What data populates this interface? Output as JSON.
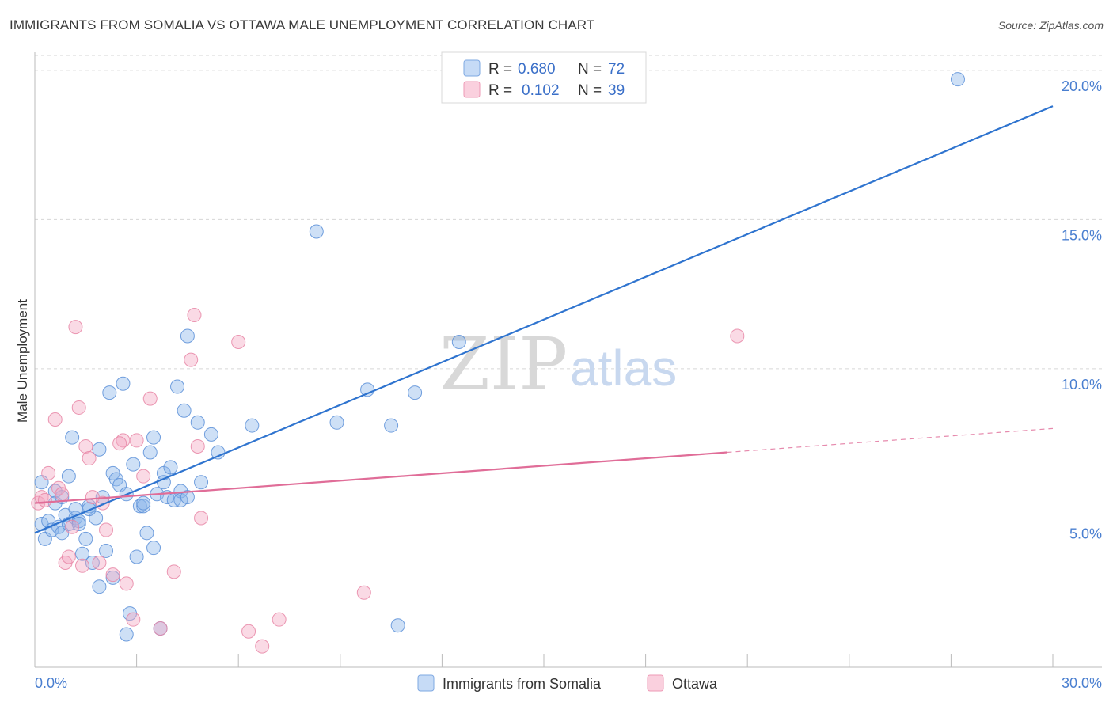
{
  "header": {
    "title": "IMMIGRANTS FROM SOMALIA VS OTTAWA MALE UNEMPLOYMENT CORRELATION CHART",
    "source": "Source: ZipAtlas.com"
  },
  "watermark": {
    "zip": "ZIP",
    "atlas": "atlas"
  },
  "chart_data": {
    "type": "scatter",
    "title": "IMMIGRANTS FROM SOMALIA VS OTTAWA MALE UNEMPLOYMENT CORRELATION CHART",
    "xlabel": "",
    "ylabel": "Male Unemployment",
    "xlim": [
      0,
      30
    ],
    "ylim": [
      0,
      20.5
    ],
    "x_tick_labels": [
      "0.0%",
      "30.0%"
    ],
    "y_ticks": [
      5,
      10,
      15,
      20
    ],
    "y_tick_labels": [
      "5.0%",
      "10.0%",
      "15.0%",
      "20.0%"
    ],
    "grid": true,
    "legend": {
      "position": "top-center",
      "entries": [
        {
          "r_label": "R =",
          "r_value": "0.680",
          "n_label": "N =",
          "n_value": "72"
        },
        {
          "r_label": "R =",
          "r_value": "0.102",
          "n_label": "N =",
          "n_value": "39"
        }
      ]
    },
    "series": [
      {
        "name": "Immigrants from Somalia",
        "color": "#8ab4ea",
        "stroke": "#5a8fd8",
        "line_color": "#2f74cf",
        "trend": {
          "x0": 0,
          "y0": 4.5,
          "x1": 30,
          "y1": 18.8
        },
        "points": [
          [
            0.2,
            6.2
          ],
          [
            0.2,
            4.8
          ],
          [
            0.3,
            4.3
          ],
          [
            0.4,
            4.9
          ],
          [
            0.5,
            4.6
          ],
          [
            0.6,
            5.9
          ],
          [
            0.6,
            5.5
          ],
          [
            0.7,
            4.7
          ],
          [
            0.8,
            4.5
          ],
          [
            0.8,
            5.7
          ],
          [
            0.9,
            5.1
          ],
          [
            1.0,
            6.4
          ],
          [
            1.0,
            4.8
          ],
          [
            1.1,
            7.7
          ],
          [
            1.2,
            5.0
          ],
          [
            1.2,
            5.3
          ],
          [
            1.3,
            4.9
          ],
          [
            1.3,
            4.8
          ],
          [
            1.4,
            3.8
          ],
          [
            1.5,
            4.3
          ],
          [
            1.6,
            5.4
          ],
          [
            1.7,
            3.5
          ],
          [
            1.8,
            5.0
          ],
          [
            1.9,
            2.7
          ],
          [
            1.9,
            7.3
          ],
          [
            2.0,
            5.7
          ],
          [
            2.1,
            3.9
          ],
          [
            2.2,
            9.2
          ],
          [
            2.3,
            3.0
          ],
          [
            2.3,
            6.5
          ],
          [
            2.4,
            6.3
          ],
          [
            2.5,
            6.1
          ],
          [
            2.6,
            9.5
          ],
          [
            2.7,
            5.8
          ],
          [
            2.7,
            1.1
          ],
          [
            2.8,
            1.8
          ],
          [
            2.9,
            6.8
          ],
          [
            3.0,
            3.7
          ],
          [
            3.1,
            5.4
          ],
          [
            3.2,
            5.4
          ],
          [
            3.3,
            4.5
          ],
          [
            3.4,
            7.2
          ],
          [
            3.5,
            7.7
          ],
          [
            3.5,
            4.0
          ],
          [
            3.6,
            5.8
          ],
          [
            3.7,
            1.3
          ],
          [
            3.8,
            6.5
          ],
          [
            3.8,
            6.2
          ],
          [
            3.9,
            5.7
          ],
          [
            4.0,
            6.7
          ],
          [
            4.1,
            5.6
          ],
          [
            4.2,
            9.4
          ],
          [
            4.3,
            5.9
          ],
          [
            4.3,
            5.6
          ],
          [
            4.4,
            8.6
          ],
          [
            4.5,
            11.1
          ],
          [
            4.5,
            5.7
          ],
          [
            4.8,
            8.2
          ],
          [
            4.9,
            6.2
          ],
          [
            5.2,
            7.8
          ],
          [
            5.4,
            7.2
          ],
          [
            6.4,
            8.1
          ],
          [
            8.3,
            14.6
          ],
          [
            8.9,
            8.2
          ],
          [
            9.8,
            9.3
          ],
          [
            10.5,
            8.1
          ],
          [
            10.7,
            1.4
          ],
          [
            11.2,
            9.2
          ],
          [
            12.5,
            10.9
          ],
          [
            27.2,
            19.7
          ],
          [
            1.6,
            5.3
          ],
          [
            3.2,
            5.5
          ]
        ]
      },
      {
        "name": "Ottawa",
        "color": "#f4a8c0",
        "stroke": "#e886a6",
        "line_color": "#e06d98",
        "trend": {
          "x0": 0,
          "y0": 5.5,
          "x1": 20.4,
          "y1": 7.2,
          "dash_x1": 30,
          "dash_y1": 8.0
        },
        "points": [
          [
            0.1,
            5.5
          ],
          [
            0.2,
            5.7
          ],
          [
            0.3,
            5.6
          ],
          [
            0.4,
            6.5
          ],
          [
            0.6,
            8.3
          ],
          [
            0.7,
            6.0
          ],
          [
            0.8,
            5.8
          ],
          [
            0.9,
            3.5
          ],
          [
            1.0,
            3.7
          ],
          [
            1.1,
            4.7
          ],
          [
            1.2,
            11.4
          ],
          [
            1.3,
            8.7
          ],
          [
            1.4,
            3.4
          ],
          [
            1.5,
            7.4
          ],
          [
            1.6,
            7.0
          ],
          [
            1.7,
            5.7
          ],
          [
            1.9,
            3.5
          ],
          [
            2.0,
            5.5
          ],
          [
            2.1,
            4.6
          ],
          [
            2.3,
            3.1
          ],
          [
            2.6,
            7.6
          ],
          [
            2.7,
            2.8
          ],
          [
            2.9,
            1.6
          ],
          [
            3.0,
            7.6
          ],
          [
            3.2,
            6.4
          ],
          [
            3.4,
            9.0
          ],
          [
            3.7,
            1.3
          ],
          [
            4.1,
            3.2
          ],
          [
            4.6,
            10.3
          ],
          [
            4.7,
            11.8
          ],
          [
            4.8,
            7.4
          ],
          [
            4.9,
            5.0
          ],
          [
            6.0,
            10.9
          ],
          [
            6.3,
            1.2
          ],
          [
            6.7,
            0.7
          ],
          [
            7.2,
            1.6
          ],
          [
            9.7,
            2.5
          ],
          [
            20.7,
            11.1
          ],
          [
            2.5,
            7.5
          ]
        ]
      }
    ]
  }
}
